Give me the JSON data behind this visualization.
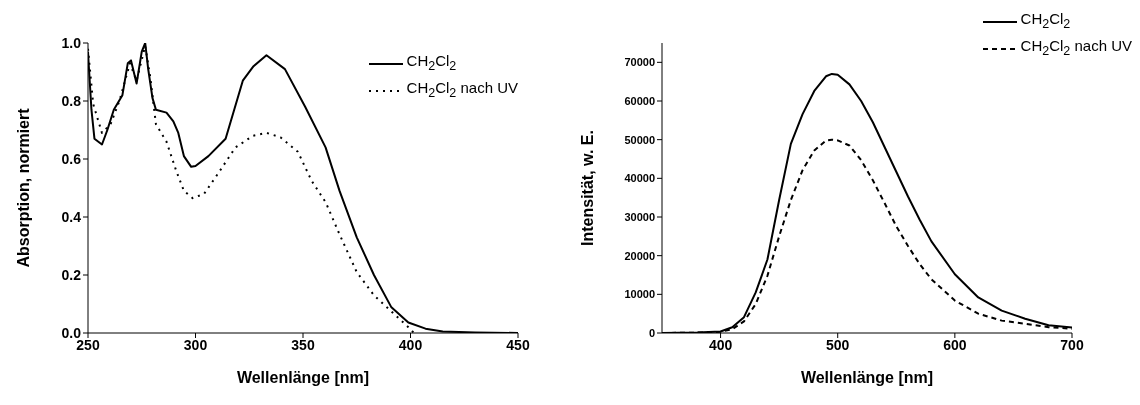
{
  "chart_data": [
    {
      "type": "line",
      "xlabel": "Wellenlänge [nm]",
      "ylabel": "Absorption, normiert",
      "xlim": [
        250,
        450
      ],
      "xticks": [
        250,
        300,
        350,
        400,
        450
      ],
      "ylim": [
        0,
        1
      ],
      "yticks": [
        {
          "value": 0,
          "label": "0.0"
        },
        {
          "value": 0.2,
          "label": "0.2"
        },
        {
          "value": 0.4,
          "label": "0.4"
        },
        {
          "value": 0.6,
          "label": "0.6"
        },
        {
          "value": 0.8,
          "label": "0.8"
        },
        {
          "value": 1,
          "label": "1.0"
        }
      ],
      "grid": false,
      "legend": "top right",
      "marker": "none",
      "series": [
        {
          "name": "CH$_{2}$Cl$_{2}$",
          "color": "#000000",
          "line_style": "solid",
          "x": [
            250,
            250.3,
            251.6,
            253,
            256.5,
            259,
            262,
            266,
            268.5,
            270,
            272.6,
            275,
            276.6,
            278,
            280,
            281.6,
            286.5,
            289.7,
            292,
            294.6,
            298,
            300,
            306,
            314,
            322,
            327,
            333,
            341.6,
            351,
            360.5,
            367,
            375,
            383,
            391,
            399,
            407,
            415,
            430,
            450
          ],
          "values": [
            0.97,
            0.93,
            0.77,
            0.67,
            0.65,
            0.7,
            0.77,
            0.82,
            0.93,
            0.94,
            0.86,
            0.97,
            1.0,
            0.91,
            0.81,
            0.77,
            0.76,
            0.73,
            0.69,
            0.61,
            0.573,
            0.576,
            0.61,
            0.67,
            0.87,
            0.92,
            0.958,
            0.91,
            0.78,
            0.64,
            0.49,
            0.33,
            0.2,
            0.09,
            0.036,
            0.015,
            0.005,
            0.002,
            0
          ]
        },
        {
          "name": "CH$_{2}$Cl$_{2}$ nach UV",
          "color": "#000000",
          "line_style": "dotted",
          "x": [
            250,
            252.4,
            256.5,
            260.5,
            264.6,
            269.5,
            272.6,
            276.6,
            279,
            281.6,
            286.5,
            291,
            294.6,
            298.7,
            304,
            310.5,
            318.6,
            326.7,
            333,
            339.5,
            347.6,
            354,
            360.6,
            367,
            375,
            383,
            391,
            399,
            401.6
          ],
          "values": [
            0.98,
            0.79,
            0.69,
            0.72,
            0.8,
            0.93,
            0.87,
            0.99,
            0.88,
            0.72,
            0.66,
            0.56,
            0.49,
            0.465,
            0.48,
            0.55,
            0.64,
            0.68,
            0.69,
            0.675,
            0.625,
            0.525,
            0.45,
            0.34,
            0.21,
            0.13,
            0.075,
            0.02,
            0
          ]
        }
      ]
    },
    {
      "type": "line",
      "xlabel": "Wellenlänge [nm]",
      "ylabel": "Intensität, w. E.",
      "xlim": [
        350,
        700
      ],
      "xticks": [
        400,
        500,
        600,
        700
      ],
      "ylim": [
        0,
        75000
      ],
      "yticks": [
        0,
        10000,
        20000,
        30000,
        40000,
        50000,
        60000,
        70000
      ],
      "grid": false,
      "legend": "top right",
      "marker": "none",
      "series": [
        {
          "name": "CH$_{2}$Cl$_{2}$",
          "color": "#000000",
          "line_style": "solid",
          "x": [
            350,
            380,
            400,
            410,
            420,
            430,
            440,
            445,
            450,
            460,
            470,
            480,
            490,
            495,
            500,
            510,
            520,
            530,
            540,
            550,
            560,
            570,
            580,
            600,
            620,
            640,
            660,
            680,
            700
          ],
          "values": [
            0,
            100,
            400,
            1500,
            4100,
            10500,
            19000,
            26700,
            34400,
            48900,
            56600,
            62600,
            66400,
            67000,
            66800,
            64300,
            60000,
            54500,
            48100,
            41700,
            35300,
            29300,
            23700,
            15200,
            9200,
            5800,
            3700,
            2000,
            1400
          ]
        },
        {
          "name": "CH$_{2}$Cl$_{2}$ nach UV",
          "color": "#000000",
          "line_style": "dashed",
          "x": [
            350,
            380,
            400,
            410,
            420,
            430,
            440,
            450,
            460,
            470,
            480,
            490,
            495,
            500,
            510,
            520,
            530,
            540,
            550,
            560,
            570,
            580,
            600,
            620,
            640,
            660,
            680,
            700
          ],
          "values": [
            0,
            100,
            300,
            1000,
            3000,
            7500,
            14800,
            25000,
            34400,
            42100,
            47200,
            49800,
            50000,
            49800,
            48500,
            44700,
            39500,
            33600,
            27600,
            22500,
            17800,
            13900,
            8400,
            5000,
            3200,
            2400,
            1500,
            1100
          ]
        }
      ]
    }
  ]
}
